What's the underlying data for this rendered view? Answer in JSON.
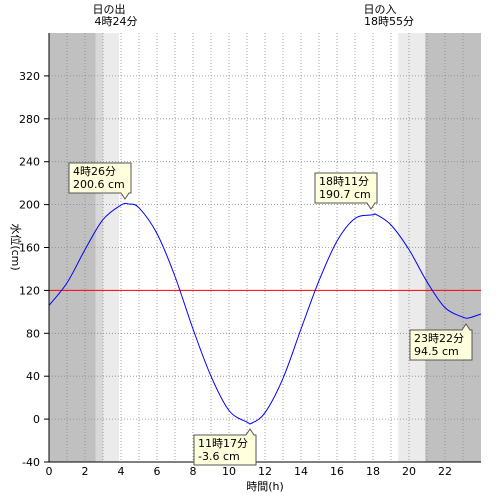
{
  "chart_data": {
    "type": "line",
    "xlabel": "時間(h)",
    "ylabel": "水位(cm)",
    "xlim": [
      0,
      24
    ],
    "ylim": [
      -40,
      360
    ],
    "x_ticks": [
      0,
      2,
      4,
      6,
      8,
      10,
      12,
      14,
      16,
      18,
      20,
      22
    ],
    "y_ticks": [
      -40,
      0,
      40,
      80,
      120,
      160,
      200,
      240,
      280,
      320
    ],
    "reference_line": {
      "y": 120,
      "color": "#ff0000"
    },
    "line_color": "#0000ff",
    "sunrise": {
      "title": "日の出",
      "time": "4時24分",
      "hour": 4.4
    },
    "sunset": {
      "title": "日の入",
      "time": "18時55分",
      "hour": 18.9167
    },
    "shading": {
      "night_color": "#c0c0c0",
      "twilight_dark_color": "#d8d8d8",
      "twilight_light_color": "#ebebeb",
      "day_color": "#ffffff",
      "bands": [
        {
          "from": 0,
          "to": 2.6,
          "shade": "night"
        },
        {
          "from": 2.6,
          "to": 3.0,
          "shade": "twilight_dark"
        },
        {
          "from": 3.0,
          "to": 3.9,
          "shade": "twilight_light"
        },
        {
          "from": 3.9,
          "to": 19.4,
          "shade": "day"
        },
        {
          "from": 19.4,
          "to": 20.9,
          "shade": "twilight_light"
        },
        {
          "from": 20.9,
          "to": 24,
          "shade": "night"
        }
      ]
    },
    "extrema": [
      {
        "hour": 4.4333,
        "value": 200.6,
        "time_label": "4時26分",
        "value_label": "200.6 cm",
        "type": "high"
      },
      {
        "hour": 11.2833,
        "value": -3.6,
        "time_label": "11時17分",
        "value_label": "-3.6 cm",
        "type": "low"
      },
      {
        "hour": 18.1833,
        "value": 190.7,
        "time_label": "18時11分",
        "value_label": "190.7 cm",
        "type": "high"
      },
      {
        "hour": 23.3667,
        "value": 94.5,
        "time_label": "23時22分",
        "value_label": "94.5 cm",
        "type": "low"
      }
    ],
    "series": [
      {
        "x": [
          0,
          1,
          2,
          3,
          4,
          4.4333,
          5,
          6,
          7,
          8,
          9,
          10,
          11,
          11.2833,
          12,
          13,
          14,
          15,
          16,
          17,
          18,
          18.1833,
          19,
          20,
          21,
          22,
          23,
          23.3667,
          24
        ],
        "values": [
          106,
          127,
          158,
          186,
          199.5,
          200.6,
          197,
          173,
          133,
          84,
          40,
          8,
          -2.8,
          -3.6,
          6,
          38,
          84,
          129,
          166,
          187,
          190.5,
          190.7,
          181,
          158,
          128,
          104,
          95,
          94.5,
          98
        ]
      }
    ]
  }
}
